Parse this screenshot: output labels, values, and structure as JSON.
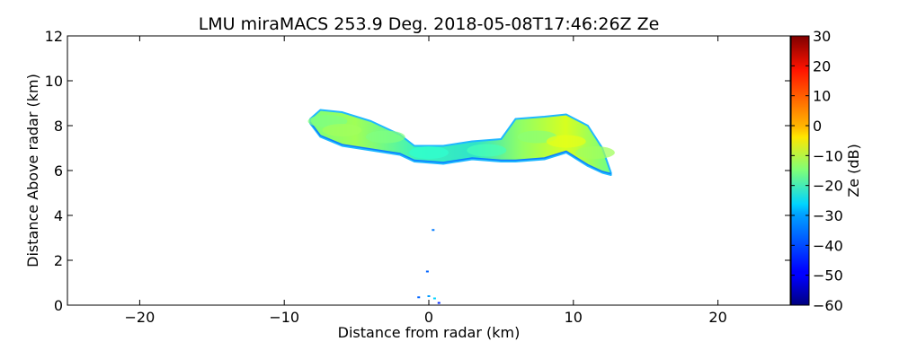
{
  "chart_data": {
    "type": "heatmap",
    "title": "LMU miraMACS 253.9 Deg. 2018-05-08T17:46:26Z  Ze",
    "xlabel": "Distance from radar (km)",
    "ylabel": "Distance Above radar  (km)",
    "xlim": [
      -25,
      25
    ],
    "ylim": [
      0,
      12
    ],
    "xticks": [
      -20,
      -10,
      0,
      10,
      20
    ],
    "xtick_labels": [
      "−20",
      "−10",
      "0",
      "10",
      "20"
    ],
    "yticks": [
      0,
      2,
      4,
      6,
      8,
      10,
      12
    ],
    "ytick_labels": [
      "0",
      "2",
      "4",
      "6",
      "8",
      "10",
      "12"
    ],
    "colorbar": {
      "label": "Ze (dB)",
      "range": [
        -60,
        30
      ],
      "colormap": "jet",
      "ticks": [
        30,
        20,
        10,
        0,
        -10,
        -20,
        -30,
        -40,
        -50,
        -60
      ],
      "tick_labels": [
        "30",
        "20",
        "10",
        "0",
        "−10",
        "−20",
        "−30",
        "−40",
        "−50",
        "−60"
      ]
    },
    "echo_layer": {
      "description_points_km": "outline of cloud echo (x, top, bottom)",
      "profile": [
        {
          "x": -8.2,
          "top": 8.3,
          "bottom": 8.1
        },
        {
          "x": -7.5,
          "top": 8.7,
          "bottom": 7.5
        },
        {
          "x": -6.0,
          "top": 8.6,
          "bottom": 7.1
        },
        {
          "x": -4.0,
          "top": 8.2,
          "bottom": 6.9
        },
        {
          "x": -2.0,
          "top": 7.6,
          "bottom": 6.7
        },
        {
          "x": -1.0,
          "top": 7.1,
          "bottom": 6.4
        },
        {
          "x": 1.0,
          "top": 7.1,
          "bottom": 6.3
        },
        {
          "x": 3.0,
          "top": 7.3,
          "bottom": 6.5
        },
        {
          "x": 5.0,
          "top": 7.4,
          "bottom": 6.4
        },
        {
          "x": 6.0,
          "top": 8.3,
          "bottom": 6.4
        },
        {
          "x": 8.0,
          "top": 8.4,
          "bottom": 6.5
        },
        {
          "x": 9.5,
          "top": 8.5,
          "bottom": 6.8
        },
        {
          "x": 11.0,
          "top": 8.0,
          "bottom": 6.2
        },
        {
          "x": 12.0,
          "top": 7.0,
          "bottom": 5.9
        },
        {
          "x": 12.6,
          "top": 5.9,
          "bottom": 5.8
        }
      ],
      "values_dB": [
        {
          "x": -7.0,
          "y": 8.2,
          "ze": -15
        },
        {
          "x": -6.0,
          "y": 7.8,
          "ze": -12
        },
        {
          "x": -3.0,
          "y": 7.5,
          "ze": -15
        },
        {
          "x": 0.0,
          "y": 6.8,
          "ze": -22
        },
        {
          "x": 4.0,
          "y": 6.9,
          "ze": -20
        },
        {
          "x": 7.5,
          "y": 7.5,
          "ze": -14
        },
        {
          "x": 9.5,
          "y": 7.3,
          "ze": -6
        },
        {
          "x": 11.5,
          "y": 6.8,
          "ze": -12
        }
      ]
    },
    "scatter_echoes_km": [
      {
        "x": 0.3,
        "y": 3.35,
        "ze": -38
      },
      {
        "x": -0.1,
        "y": 1.5,
        "ze": -40
      },
      {
        "x": 0.0,
        "y": 0.4,
        "ze": -35
      },
      {
        "x": -0.7,
        "y": 0.35,
        "ze": -40
      },
      {
        "x": 0.4,
        "y": 0.3,
        "ze": -30
      },
      {
        "x": 0.7,
        "y": 0.1,
        "ze": -45
      }
    ]
  }
}
